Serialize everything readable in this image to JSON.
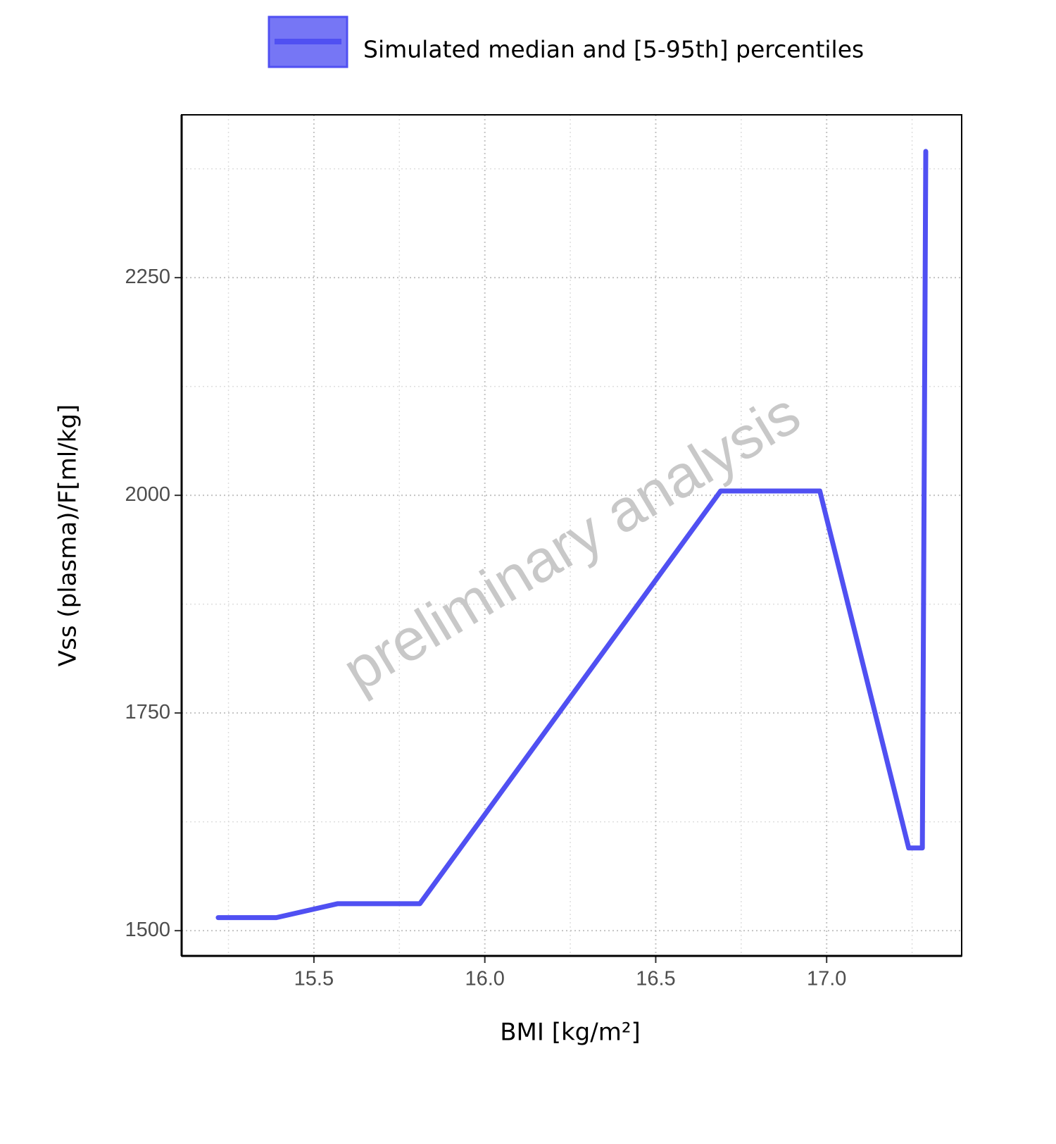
{
  "chart_data": {
    "type": "line",
    "x_label": "BMI [kg/m²]",
    "y_label": "Vss (plasma)/F[ml/kg]",
    "annotation": "preliminary analysis",
    "x": [
      15.22,
      15.39,
      15.57,
      15.81,
      16.69,
      16.98,
      17.24,
      17.28,
      17.29
    ],
    "series": [
      {
        "name": "Simulated median and [5-95th] percentiles",
        "color": "#5050f2",
        "values": [
          1515,
          1515,
          1531,
          1531,
          2005,
          2005,
          1595,
          1595,
          2395
        ]
      }
    ],
    "xlim": [
      15.113,
      17.395
    ],
    "ylim": [
      1471,
      2437
    ],
    "xticks": [
      15.5,
      {
        "value": 16,
        "label": "16.0"
      },
      16.5,
      {
        "value": 17,
        "label": "17.0"
      }
    ],
    "yticks": [
      1500,
      1750,
      2000,
      2250
    ],
    "xminorticks": [
      15.25,
      15.75,
      16.25,
      16.75,
      17.25
    ],
    "yminorticks": [
      1625,
      1875,
      2125,
      2375
    ],
    "grid": true,
    "legend": "top"
  }
}
